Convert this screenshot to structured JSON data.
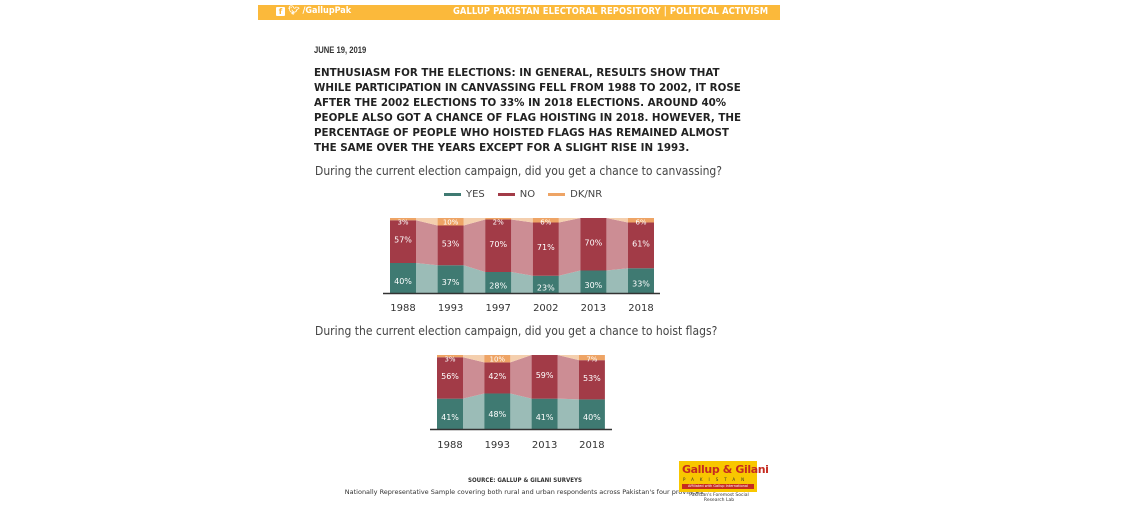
{
  "banner": {
    "social_handle": "/GallupPak",
    "facebook_icon": "facebook-icon",
    "twitter_icon": "twitter-icon",
    "title": "GALLUP PAKISTAN ELECTORAL REPOSITORY | POLITICAL ACTIVISM"
  },
  "date": "JUNE 19, 2019",
  "headline": "ENTHUSIASM FOR THE ELECTIONS: IN GENERAL, RESULTS SHOW THAT WHILE PARTICIPATION IN CANVASSING FELL FROM 1988 TO 2002, IT ROSE AFTER THE 2002 ELECTIONS TO 33% IN 2018 ELECTIONS. AROUND 40% PEOPLE ALSO GOT A CHANCE OF FLAG HOISTING IN 2018. HOWEVER, THE PERCENTAGE OF PEOPLE WHO HOISTED FLAGS HAS REMAINED ALMOST THE SAME OVER THE YEARS EXCEPT FOR A SLIGHT RISE IN 1993.",
  "legend": [
    {
      "label": "YES",
      "color": "#3f7a72"
    },
    {
      "label": "NO",
      "color": "#a23b47"
    },
    {
      "label": "DK/NR",
      "color": "#eea465"
    }
  ],
  "colors": {
    "yes": "#3f7a72",
    "no": "#a23b47",
    "dk": "#eea465",
    "yes_band": "#9bbcb7",
    "no_band": "#cc8d94",
    "dk_band": "#f4cfae",
    "label": "#ffffff",
    "axis": "#333333",
    "banner": "#fbb93b"
  },
  "chart_data": [
    {
      "type": "bar",
      "stacked": true,
      "title": "During the current election campaign, did you get a chance to canvassing?",
      "categories": [
        "1988",
        "1993",
        "1997",
        "2002",
        "2013",
        "2018"
      ],
      "series": [
        {
          "name": "YES",
          "values": [
            40,
            37,
            28,
            23,
            30,
            33
          ],
          "labels": [
            "40%",
            "37%",
            "28%",
            "23%",
            "30%",
            "33%"
          ]
        },
        {
          "name": "NO",
          "values": [
            57,
            53,
            70,
            71,
            70,
            61
          ],
          "labels": [
            "57%",
            "53%",
            "70%",
            "71%",
            "70%",
            "61%"
          ]
        },
        {
          "name": "DK/NR",
          "values": [
            3,
            10,
            2,
            6,
            0,
            6
          ],
          "labels": [
            "3%",
            "10%",
            "2%",
            "6%",
            "",
            "6%"
          ]
        }
      ],
      "ylim": [
        0,
        100
      ],
      "legend": "top-center",
      "grid": false
    },
    {
      "type": "bar",
      "stacked": true,
      "title": "During the current election campaign, did you get a chance to hoist flags?",
      "categories": [
        "1988",
        "1993",
        "2013",
        "2018"
      ],
      "series": [
        {
          "name": "YES",
          "values": [
            41,
            48,
            41,
            40
          ],
          "labels": [
            "41%",
            "48%",
            "41%",
            "40%"
          ]
        },
        {
          "name": "NO",
          "values": [
            56,
            42,
            59,
            53
          ],
          "labels": [
            "56%",
            "42%",
            "59%",
            "53%"
          ]
        },
        {
          "name": "DK/NR",
          "values": [
            3,
            10,
            0,
            7
          ],
          "labels": [
            "3%",
            "10%",
            "",
            "7%"
          ]
        }
      ],
      "ylim": [
        0,
        100
      ],
      "legend": "none",
      "grid": false
    }
  ],
  "footer": {
    "source": "SOURCE: GALLUP & GILANI SURVEYS",
    "note": "Nationally Representative Sample covering both rural and urban respondents across Pakistan's four provinces.",
    "logo_brand": "Gallup & Gilani",
    "logo_country": "PAKISTAN",
    "logo_affiliation": "Affiliated with Gallup International",
    "logo_tagline": "Pakistan's Foremost Social Research Lab"
  }
}
